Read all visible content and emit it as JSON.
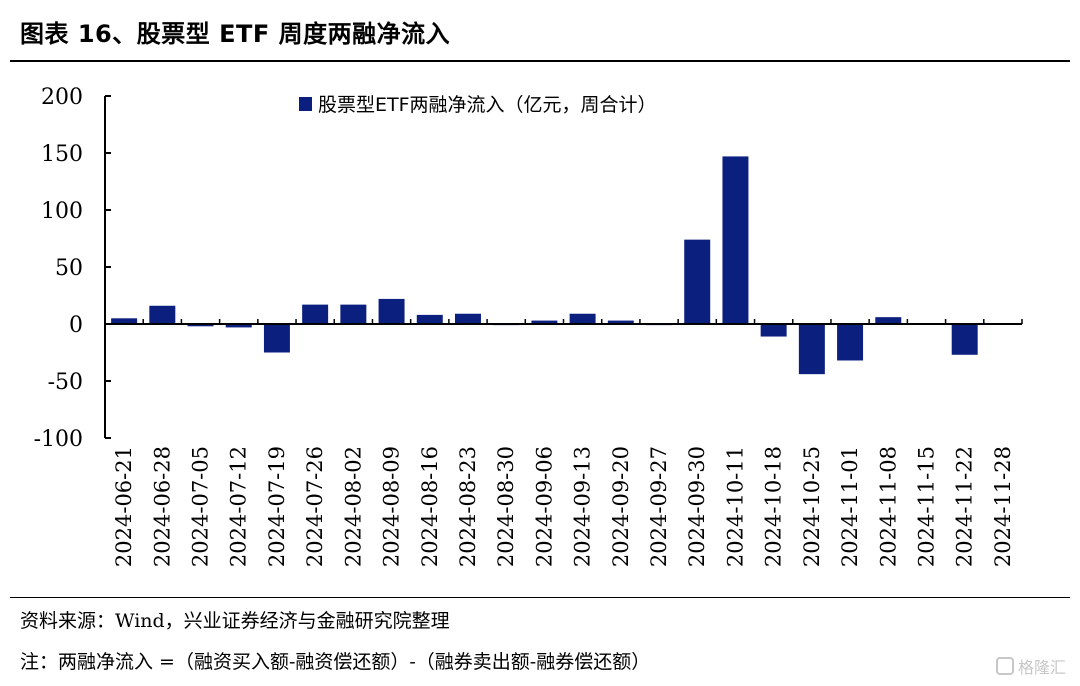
{
  "header": {
    "title": "图表 16、股票型 ETF 周度两融净流入"
  },
  "footer": {
    "source": "资料来源：Wind，兴业证券经济与金融研究院整理",
    "note": "注：两融净流入 =（融资买入额-融资偿还额）-（融券卖出额-融券偿还额）"
  },
  "watermark": {
    "text": "格隆汇"
  },
  "colors": {
    "bar": "#0b1f7f",
    "axis": "#000000"
  },
  "chart_data": {
    "type": "bar",
    "categories": [
      "2024-06-21",
      "2024-06-28",
      "2024-07-05",
      "2024-07-12",
      "2024-07-19",
      "2024-07-26",
      "2024-08-02",
      "2024-08-09",
      "2024-08-16",
      "2024-08-23",
      "2024-08-30",
      "2024-09-06",
      "2024-09-13",
      "2024-09-20",
      "2024-09-27",
      "2024-09-30",
      "2024-10-11",
      "2024-10-18",
      "2024-10-25",
      "2024-11-01",
      "2024-11-08",
      "2024-11-15",
      "2024-11-22",
      "2024-11-28"
    ],
    "series": [
      {
        "name": "股票型ETF两融净流入（亿元，周合计）",
        "values": [
          5,
          16,
          -2,
          -3,
          -25,
          17,
          17,
          22,
          8,
          9,
          -1,
          3,
          9,
          3,
          -1,
          74,
          147,
          -11,
          -44,
          -32,
          6,
          0,
          -27,
          0
        ]
      }
    ],
    "yticks": [
      200,
      150,
      100,
      50,
      0,
      -50,
      -100
    ],
    "ylim": [
      -100,
      200
    ],
    "grid": false,
    "legend": "top-center"
  }
}
